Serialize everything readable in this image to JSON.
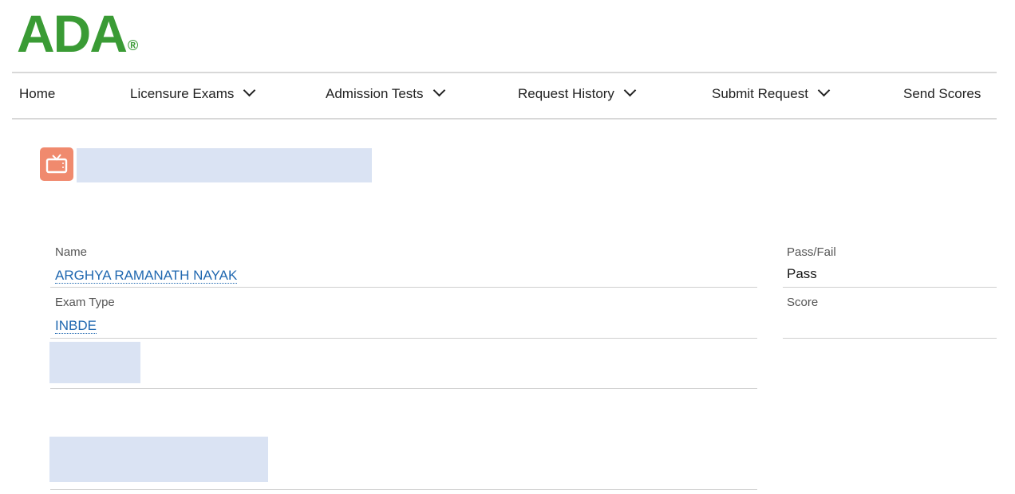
{
  "logo": {
    "text": "ADA",
    "mark": "®",
    "color": "#3a9b35"
  },
  "nav": {
    "items": [
      {
        "label": "Home",
        "has_dropdown": false
      },
      {
        "label": "Licensure Exams",
        "has_dropdown": true
      },
      {
        "label": "Admission Tests",
        "has_dropdown": true
      },
      {
        "label": "Request History",
        "has_dropdown": true
      },
      {
        "label": "Submit Request",
        "has_dropdown": true
      },
      {
        "label": "Send Scores",
        "has_dropdown": false
      }
    ]
  },
  "record": {
    "icon": "tv-icon",
    "icon_color": "#f08a6e"
  },
  "fields": {
    "name": {
      "label": "Name",
      "value": "ARGHYA RAMANATH NAYAK"
    },
    "exam_type": {
      "label": "Exam Type",
      "value": "INBDE"
    },
    "pass_fail": {
      "label": "Pass/Fail",
      "value": "Pass"
    },
    "score": {
      "label": "Score",
      "value": ""
    }
  },
  "colors": {
    "link": "#2068b0",
    "redaction": "#dae3f3"
  }
}
